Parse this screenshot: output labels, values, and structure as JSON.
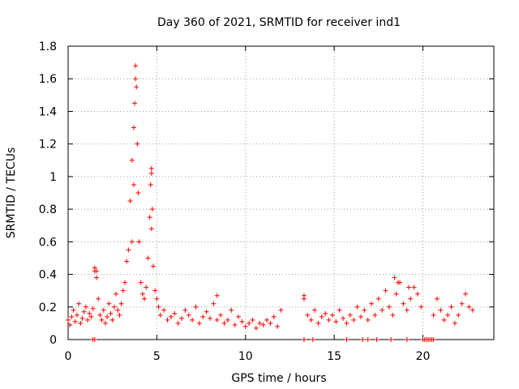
{
  "chart_data": {
    "type": "scatter",
    "title": "Day 360 of 2021, SRMTID for receiver ind1",
    "xlabel": "GPS time / hours",
    "ylabel": "SRMTID / TECUs",
    "xlim": [
      0,
      24
    ],
    "ylim": [
      0,
      1.8
    ],
    "xticks": [
      "0",
      "5",
      "10",
      "15",
      "20"
    ],
    "yticks": [
      "0",
      "0.2",
      "0.4",
      "0.6",
      "0.8",
      "1",
      "1.2",
      "1.4",
      "1.6",
      "1.8"
    ],
    "grid": true,
    "marker": "+",
    "color": "#ff0000",
    "series": [
      {
        "name": "SRMTID",
        "x": [
          0.0,
          0.1,
          0.2,
          0.3,
          0.4,
          0.5,
          0.6,
          0.7,
          0.8,
          0.9,
          1.0,
          1.1,
          1.2,
          1.3,
          1.4,
          1.5,
          1.6,
          1.7,
          1.8,
          1.9,
          2.0,
          2.1,
          2.2,
          2.3,
          2.4,
          2.5,
          2.6,
          2.7,
          2.8,
          2.9,
          3.0,
          3.1,
          3.2,
          3.3,
          3.4,
          3.5,
          3.6,
          3.7,
          3.75,
          3.8,
          3.85,
          3.9,
          3.95,
          4.0,
          4.1,
          4.2,
          4.3,
          4.4,
          4.5,
          4.6,
          4.65,
          4.7,
          4.75,
          4.8,
          4.9,
          5.0,
          5.1,
          5.2,
          5.4,
          5.6,
          5.8,
          6.0,
          6.2,
          6.4,
          6.6,
          6.8,
          7.0,
          7.2,
          7.4,
          7.6,
          7.8,
          8.0,
          8.2,
          8.4,
          8.6,
          8.8,
          9.0,
          9.2,
          9.4,
          9.6,
          9.8,
          10.0,
          10.2,
          10.4,
          10.6,
          10.8,
          11.0,
          11.2,
          11.4,
          11.6,
          11.8,
          12.0,
          13.3,
          13.5,
          13.7,
          13.9,
          14.1,
          14.3,
          14.5,
          14.7,
          14.9,
          15.1,
          15.3,
          15.5,
          15.7,
          15.9,
          16.1,
          16.3,
          16.5,
          16.7,
          16.9,
          17.1,
          17.3,
          17.5,
          17.7,
          17.9,
          18.1,
          18.3,
          18.5,
          18.7,
          18.9,
          19.1,
          19.3,
          19.5,
          19.7,
          19.9,
          20.6,
          20.8,
          21.0,
          21.2,
          21.4,
          21.6,
          21.8,
          22.0,
          22.2,
          22.4,
          22.6,
          22.8,
          1.5,
          1.6,
          3.6,
          3.7,
          3.8,
          4.7,
          4.7,
          8.4,
          13.3,
          18.4,
          18.6,
          19.2
        ],
        "y": [
          0.12,
          0.09,
          0.14,
          0.18,
          0.11,
          0.15,
          0.22,
          0.1,
          0.13,
          0.17,
          0.2,
          0.12,
          0.16,
          0.14,
          0.19,
          0.42,
          0.38,
          0.25,
          0.15,
          0.12,
          0.18,
          0.1,
          0.14,
          0.22,
          0.16,
          0.12,
          0.2,
          0.28,
          0.18,
          0.15,
          0.22,
          0.3,
          0.35,
          0.48,
          0.55,
          0.85,
          1.1,
          1.3,
          1.45,
          1.6,
          1.55,
          1.2,
          0.9,
          0.6,
          0.35,
          0.28,
          0.25,
          0.32,
          0.5,
          0.75,
          0.95,
          1.05,
          0.8,
          0.45,
          0.3,
          0.25,
          0.2,
          0.15,
          0.18,
          0.12,
          0.14,
          0.16,
          0.1,
          0.13,
          0.18,
          0.15,
          0.12,
          0.2,
          0.1,
          0.14,
          0.17,
          0.13,
          0.22,
          0.12,
          0.15,
          0.1,
          0.12,
          0.18,
          0.09,
          0.14,
          0.11,
          0.08,
          0.1,
          0.12,
          0.07,
          0.1,
          0.09,
          0.12,
          0.1,
          0.14,
          0.08,
          0.18,
          0.25,
          0.15,
          0.12,
          0.18,
          0.1,
          0.14,
          0.16,
          0.12,
          0.15,
          0.11,
          0.18,
          0.13,
          0.1,
          0.15,
          0.12,
          0.2,
          0.14,
          0.18,
          0.12,
          0.22,
          0.15,
          0.25,
          0.18,
          0.3,
          0.2,
          0.15,
          0.28,
          0.35,
          0.22,
          0.18,
          0.25,
          0.32,
          0.28,
          0.2,
          0.15,
          0.25,
          0.18,
          0.12,
          0.15,
          0.2,
          0.1,
          0.15,
          0.22,
          0.28,
          0.2,
          0.18,
          0.44,
          0.42,
          0.6,
          0.95,
          1.68,
          1.02,
          0.68,
          0.27,
          0.27,
          0.38,
          0.35,
          0.32
        ],
        "zero_x": [
          1.4,
          1.5,
          13.3,
          13.8,
          15.7,
          16.6,
          16.9,
          17.4,
          18.2,
          19.1,
          20.0,
          20.1,
          20.2,
          20.3,
          20.4,
          20.5,
          20.6
        ]
      }
    ]
  }
}
